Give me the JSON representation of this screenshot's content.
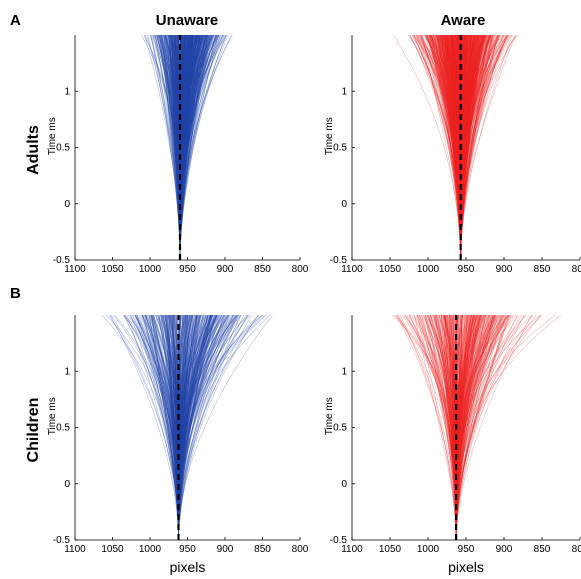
{
  "panels": {
    "a": "A",
    "b": "B"
  },
  "columns": {
    "unaware": "Unaware",
    "aware": "Aware"
  },
  "rows": {
    "adults": "Adults",
    "children": "Children"
  },
  "colors": {
    "unaware": "#2244aa",
    "aware": "#ee2222",
    "median": "#000000"
  },
  "chart_data": [
    {
      "id": "adults-unaware",
      "type": "line",
      "group": "Adults",
      "condition": "Unaware",
      "ylabel": "Time ms",
      "xlabel": "",
      "xlim": [
        1100,
        800
      ],
      "ylim": [
        -0.5,
        1.5
      ],
      "xticks": [
        "1100",
        "1050",
        "1000",
        "950",
        "900",
        "850",
        "800"
      ],
      "yticks": [
        "-0.5",
        "0",
        "0.5",
        "1"
      ],
      "origin_x": 960,
      "spread_at_top": [
        1020,
        880
      ],
      "series": [
        {
          "values_x": [
            960,
            960
          ],
          "values_y": [
            -0.5,
            1.5
          ],
          "style": "dashed"
        }
      ]
    },
    {
      "id": "adults-aware",
      "type": "line",
      "group": "Adults",
      "condition": "Aware",
      "ylabel": "Time ms",
      "xlabel": "",
      "xlim": [
        1100,
        800
      ],
      "ylim": [
        -0.5,
        1.5
      ],
      "xticks": [
        "1100",
        "1050",
        "1000",
        "950",
        "900",
        "850",
        "800"
      ],
      "yticks": [
        "-0.5",
        "0",
        "0.5",
        "1"
      ],
      "origin_x": 957,
      "spread_at_top": [
        1045,
        870
      ],
      "series": [
        {
          "values_x": [
            957,
            957
          ],
          "values_y": [
            -0.5,
            1.5
          ],
          "style": "dashed"
        }
      ]
    },
    {
      "id": "children-unaware",
      "type": "line",
      "group": "Children",
      "condition": "Unaware",
      "ylabel": "Time ms",
      "xlabel": "pixels",
      "xlim": [
        1100,
        800
      ],
      "ylim": [
        -0.5,
        1.5
      ],
      "xticks": [
        "1100",
        "1050",
        "1000",
        "950",
        "900",
        "850",
        "800"
      ],
      "yticks": [
        "-0.5",
        "0",
        "0.5",
        "1"
      ],
      "origin_x": 962,
      "spread_at_top": [
        1090,
        815
      ],
      "series": [
        {
          "values_x": [
            962,
            962
          ],
          "values_y": [
            -0.5,
            1.5
          ],
          "style": "dashed"
        }
      ]
    },
    {
      "id": "children-aware",
      "type": "line",
      "group": "Children",
      "condition": "Aware",
      "ylabel": "Time ms",
      "xlabel": "pixels",
      "xlim": [
        1100,
        800
      ],
      "ylim": [
        -0.5,
        1.5
      ],
      "xticks": [
        "1100",
        "1050",
        "1000",
        "950",
        "900",
        "850",
        "800"
      ],
      "yticks": [
        "-0.5",
        "0",
        "0.5",
        "1"
      ],
      "origin_x": 963,
      "spread_at_top": [
        1085,
        820
      ],
      "series": [
        {
          "values_x": [
            963,
            963
          ],
          "values_y": [
            -0.5,
            1.5
          ],
          "style": "dashed"
        }
      ]
    }
  ]
}
